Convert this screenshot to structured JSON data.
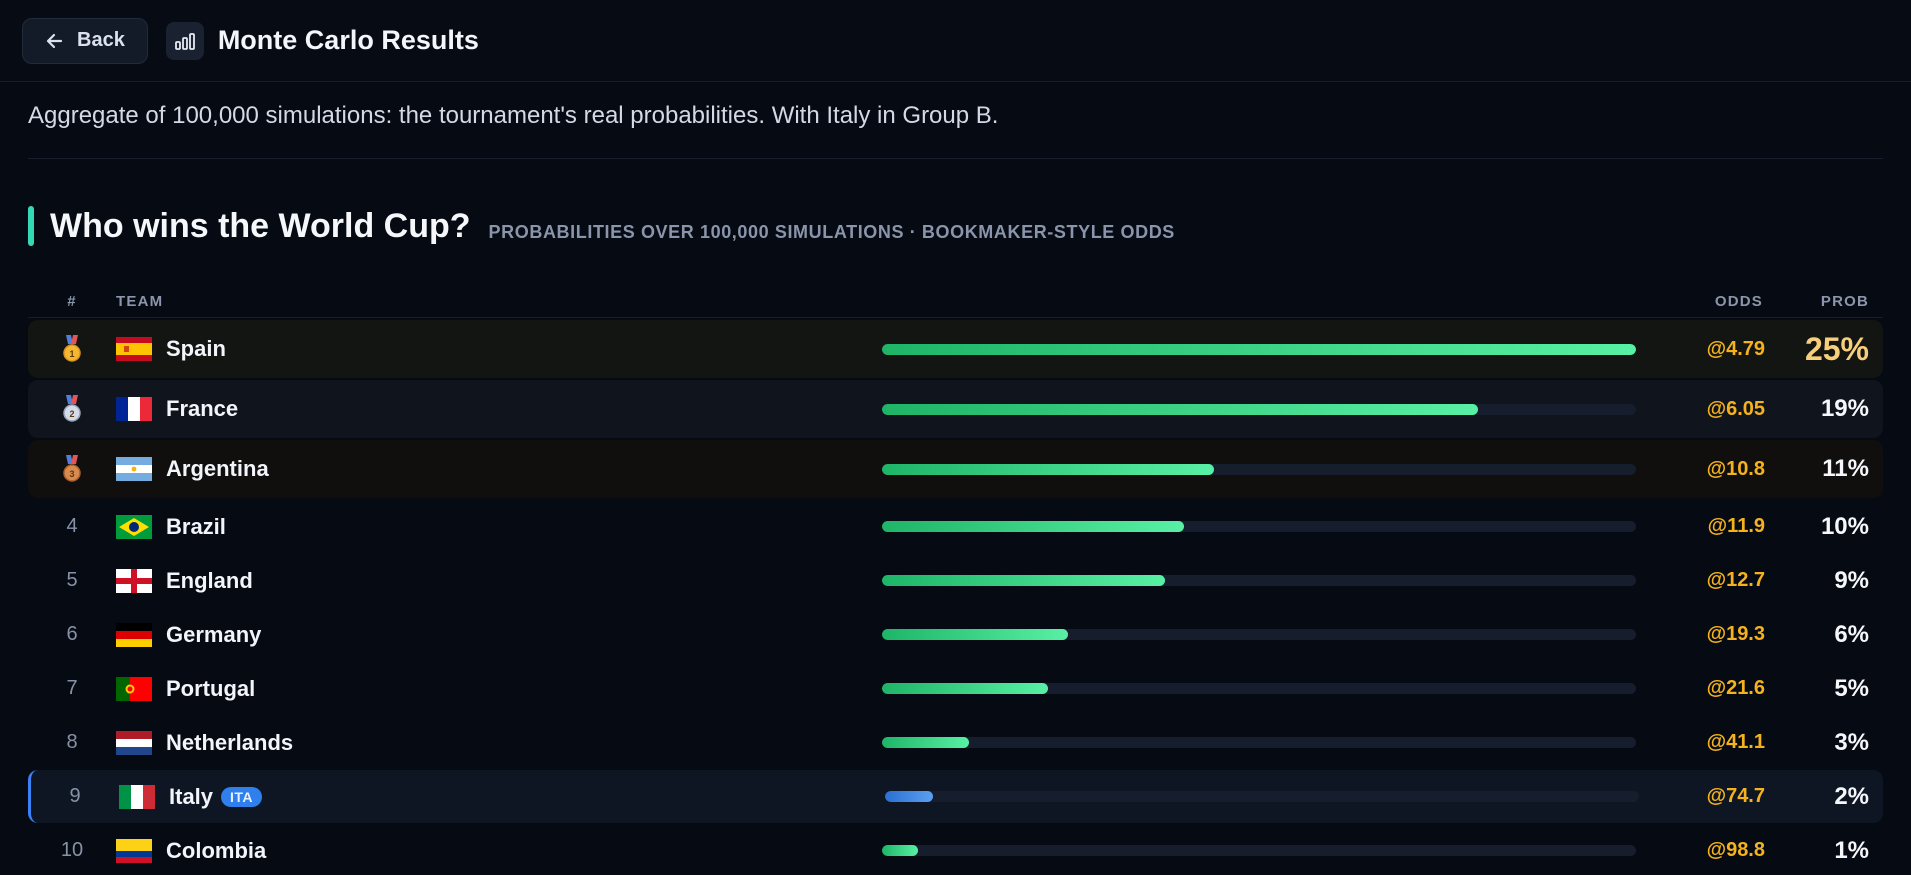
{
  "header": {
    "back_label": "Back",
    "title": "Monte Carlo Results"
  },
  "subtitle": "Aggregate of 100,000 simulations: the tournament's real probabilities. With Italy in Group B.",
  "section": {
    "title": "Who wins the World Cup?",
    "subtitle": "PROBABILITIES OVER 100,000 SIMULATIONS · BOOKMAKER-STYLE ODDS"
  },
  "table": {
    "headers": {
      "rank": "#",
      "team": "TEAM",
      "odds": "ODDS",
      "prob": "PROB"
    },
    "rows": [
      {
        "rank": "1",
        "team": "Spain",
        "odds": "@4.79",
        "prob": "25%",
        "fill": 1.0,
        "flag": "spain",
        "medal": "gold"
      },
      {
        "rank": "2",
        "team": "France",
        "odds": "@6.05",
        "prob": "19%",
        "fill": 0.79,
        "flag": "france",
        "medal": "silver"
      },
      {
        "rank": "3",
        "team": "Argentina",
        "odds": "@10.8",
        "prob": "11%",
        "fill": 0.44,
        "flag": "argentina",
        "medal": "bronze"
      },
      {
        "rank": "4",
        "team": "Brazil",
        "odds": "@11.9",
        "prob": "10%",
        "fill": 0.4,
        "flag": "brazil"
      },
      {
        "rank": "5",
        "team": "England",
        "odds": "@12.7",
        "prob": "9%",
        "fill": 0.375,
        "flag": "england"
      },
      {
        "rank": "6",
        "team": "Germany",
        "odds": "@19.3",
        "prob": "6%",
        "fill": 0.247,
        "flag": "germany"
      },
      {
        "rank": "7",
        "team": "Portugal",
        "odds": "@21.6",
        "prob": "5%",
        "fill": 0.22,
        "flag": "portugal"
      },
      {
        "rank": "8",
        "team": "Netherlands",
        "odds": "@41.1",
        "prob": "3%",
        "fill": 0.115,
        "flag": "netherlands"
      },
      {
        "rank": "9",
        "team": "Italy",
        "odds": "@74.7",
        "prob": "2%",
        "fill": 0.063,
        "flag": "italy",
        "tag": "ITA",
        "highlight": true
      },
      {
        "rank": "10",
        "team": "Colombia",
        "odds": "@98.8",
        "prob": "1%",
        "fill": 0.048,
        "flag": "colombia"
      }
    ]
  },
  "colors": {
    "accent": "#33d9b2",
    "odds": "#f5b21d",
    "bar_green": "#3ddc8a",
    "bar_blue": "#2f80ed"
  }
}
